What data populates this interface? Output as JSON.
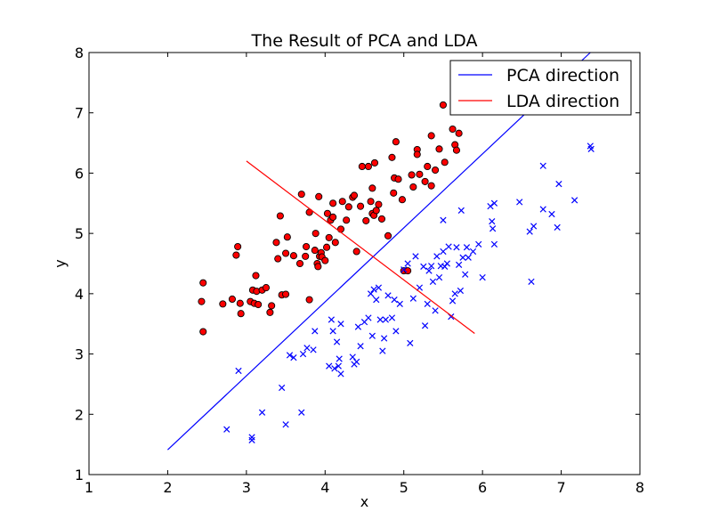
{
  "chart_data": {
    "type": "scatter",
    "title": "The Result of PCA and LDA",
    "xlabel": "x",
    "ylabel": "y",
    "xlim": [
      1,
      8
    ],
    "ylim": [
      1,
      8
    ],
    "xticks": [
      "1",
      "2",
      "3",
      "4",
      "5",
      "6",
      "7",
      "8"
    ],
    "yticks": [
      "1",
      "2",
      "3",
      "4",
      "5",
      "6",
      "7",
      "8"
    ],
    "grid": false,
    "legend_position": "top-right",
    "colors": {
      "pca": "#0000ff",
      "lda": "#ff0000",
      "class1": "#ff0000",
      "class2": "#0000ff"
    },
    "lines": [
      {
        "name": "PCA direction",
        "color": "#0000ff",
        "points": [
          [
            2.0,
            1.41
          ],
          [
            7.37,
            8.0
          ]
        ]
      },
      {
        "name": "LDA direction",
        "color": "#ff0000",
        "points": [
          [
            3.0,
            6.2
          ],
          [
            5.9,
            3.34
          ]
        ]
      }
    ],
    "series": [
      {
        "marker": "circle",
        "color": "#ff0000",
        "points": [
          [
            2.45,
            4.18
          ],
          [
            2.43,
            3.87
          ],
          [
            2.45,
            3.37
          ],
          [
            2.7,
            3.83
          ],
          [
            2.82,
            3.91
          ],
          [
            2.87,
            4.64
          ],
          [
            2.89,
            4.78
          ],
          [
            2.92,
            3.84
          ],
          [
            2.93,
            3.67
          ],
          [
            3.05,
            3.87
          ],
          [
            3.08,
            4.06
          ],
          [
            3.1,
            3.84
          ],
          [
            3.12,
            4.3
          ],
          [
            3.13,
            4.04
          ],
          [
            3.15,
            3.82
          ],
          [
            3.2,
            4.06
          ],
          [
            3.25,
            4.1
          ],
          [
            3.3,
            3.69
          ],
          [
            3.32,
            3.8
          ],
          [
            3.38,
            4.85
          ],
          [
            3.4,
            4.58
          ],
          [
            3.43,
            5.29
          ],
          [
            3.45,
            3.98
          ],
          [
            3.5,
            3.99
          ],
          [
            3.5,
            4.67
          ],
          [
            3.52,
            4.94
          ],
          [
            3.6,
            4.63
          ],
          [
            3.68,
            4.5
          ],
          [
            3.7,
            5.65
          ],
          [
            3.75,
            4.62
          ],
          [
            3.76,
            4.78
          ],
          [
            3.8,
            3.9
          ],
          [
            3.8,
            5.35
          ],
          [
            3.87,
            4.72
          ],
          [
            3.88,
            5.0
          ],
          [
            3.9,
            4.5
          ],
          [
            3.91,
            4.45
          ],
          [
            3.92,
            5.61
          ],
          [
            3.93,
            4.62
          ],
          [
            3.95,
            4.68
          ],
          [
            3.96,
            4.61
          ],
          [
            4.0,
            4.55
          ],
          [
            4.02,
            4.77
          ],
          [
            4.03,
            5.33
          ],
          [
            4.05,
            4.93
          ],
          [
            4.07,
            5.22
          ],
          [
            4.1,
            5.5
          ],
          [
            4.1,
            5.27
          ],
          [
            4.13,
            4.85
          ],
          [
            4.2,
            5.07
          ],
          [
            4.22,
            5.53
          ],
          [
            4.27,
            5.22
          ],
          [
            4.3,
            5.44
          ],
          [
            4.35,
            5.6
          ],
          [
            4.37,
            5.63
          ],
          [
            4.4,
            4.7
          ],
          [
            4.45,
            5.45
          ],
          [
            4.47,
            6.11
          ],
          [
            4.52,
            5.21
          ],
          [
            4.55,
            6.11
          ],
          [
            4.58,
            5.53
          ],
          [
            4.6,
            5.75
          ],
          [
            4.6,
            5.33
          ],
          [
            4.62,
            5.3
          ],
          [
            4.63,
            6.17
          ],
          [
            4.65,
            5.38
          ],
          [
            4.68,
            5.48
          ],
          [
            4.72,
            5.24
          ],
          [
            4.8,
            4.96
          ],
          [
            4.85,
            6.26
          ],
          [
            4.87,
            5.67
          ],
          [
            4.88,
            5.92
          ],
          [
            4.9,
            6.52
          ],
          [
            4.93,
            5.9
          ],
          [
            4.98,
            5.56
          ],
          [
            5.0,
            4.38
          ],
          [
            5.05,
            4.38
          ],
          [
            5.1,
            5.97
          ],
          [
            5.12,
            5.77
          ],
          [
            5.17,
            6.39
          ],
          [
            5.17,
            6.31
          ],
          [
            5.2,
            5.98
          ],
          [
            5.27,
            5.86
          ],
          [
            5.3,
            6.11
          ],
          [
            5.35,
            5.79
          ],
          [
            5.35,
            6.62
          ],
          [
            5.4,
            6.05
          ],
          [
            5.45,
            6.4
          ],
          [
            5.5,
            7.13
          ],
          [
            5.52,
            6.18
          ],
          [
            5.62,
            6.73
          ],
          [
            5.65,
            6.47
          ],
          [
            5.67,
            6.38
          ],
          [
            5.7,
            6.66
          ]
        ]
      },
      {
        "marker": "x",
        "color": "#0000ff",
        "points": [
          [
            2.75,
            1.75
          ],
          [
            2.9,
            2.72
          ],
          [
            3.07,
            1.62
          ],
          [
            3.07,
            1.57
          ],
          [
            3.2,
            2.03
          ],
          [
            3.45,
            2.44
          ],
          [
            3.5,
            1.83
          ],
          [
            3.55,
            2.98
          ],
          [
            3.6,
            2.94
          ],
          [
            3.7,
            2.03
          ],
          [
            3.72,
            3.0
          ],
          [
            3.77,
            3.1
          ],
          [
            3.85,
            3.07
          ],
          [
            3.87,
            3.38
          ],
          [
            4.05,
            2.8
          ],
          [
            4.08,
            3.57
          ],
          [
            4.1,
            3.38
          ],
          [
            4.12,
            2.76
          ],
          [
            4.15,
            3.2
          ],
          [
            4.17,
            2.8
          ],
          [
            4.18,
            2.92
          ],
          [
            4.2,
            2.67
          ],
          [
            4.2,
            3.5
          ],
          [
            4.35,
            2.95
          ],
          [
            4.37,
            2.83
          ],
          [
            4.4,
            2.87
          ],
          [
            4.42,
            3.45
          ],
          [
            4.45,
            3.13
          ],
          [
            4.5,
            3.53
          ],
          [
            4.55,
            3.6
          ],
          [
            4.58,
            4.0
          ],
          [
            4.6,
            3.3
          ],
          [
            4.62,
            4.07
          ],
          [
            4.65,
            3.9
          ],
          [
            4.68,
            4.1
          ],
          [
            4.7,
            3.57
          ],
          [
            4.73,
            3.05
          ],
          [
            4.75,
            3.26
          ],
          [
            4.77,
            3.57
          ],
          [
            4.8,
            3.97
          ],
          [
            4.85,
            3.6
          ],
          [
            4.88,
            3.9
          ],
          [
            4.9,
            3.38
          ],
          [
            4.95,
            3.83
          ],
          [
            5.0,
            4.4
          ],
          [
            5.05,
            4.5
          ],
          [
            5.08,
            3.18
          ],
          [
            5.12,
            3.92
          ],
          [
            5.15,
            4.62
          ],
          [
            5.2,
            4.1
          ],
          [
            5.25,
            4.45
          ],
          [
            5.27,
            3.47
          ],
          [
            5.3,
            3.83
          ],
          [
            5.32,
            4.38
          ],
          [
            5.35,
            4.46
          ],
          [
            5.37,
            4.2
          ],
          [
            5.4,
            3.72
          ],
          [
            5.42,
            4.62
          ],
          [
            5.45,
            4.27
          ],
          [
            5.47,
            4.46
          ],
          [
            5.5,
            4.7
          ],
          [
            5.5,
            5.22
          ],
          [
            5.52,
            4.45
          ],
          [
            5.55,
            4.5
          ],
          [
            5.57,
            4.78
          ],
          [
            5.6,
            3.62
          ],
          [
            5.62,
            3.88
          ],
          [
            5.65,
            4.0
          ],
          [
            5.67,
            4.77
          ],
          [
            5.7,
            4.48
          ],
          [
            5.72,
            4.05
          ],
          [
            5.73,
            5.38
          ],
          [
            5.75,
            4.6
          ],
          [
            5.78,
            4.32
          ],
          [
            5.8,
            4.77
          ],
          [
            5.82,
            4.6
          ],
          [
            5.88,
            4.7
          ],
          [
            5.95,
            4.82
          ],
          [
            6.0,
            4.27
          ],
          [
            6.1,
            5.45
          ],
          [
            6.12,
            5.2
          ],
          [
            6.13,
            5.08
          ],
          [
            6.15,
            5.5
          ],
          [
            6.15,
            4.82
          ],
          [
            6.47,
            5.52
          ],
          [
            6.6,
            5.03
          ],
          [
            6.62,
            4.2
          ],
          [
            6.65,
            5.12
          ],
          [
            6.77,
            5.4
          ],
          [
            6.77,
            6.12
          ],
          [
            6.88,
            5.32
          ],
          [
            6.95,
            5.1
          ],
          [
            6.97,
            5.82
          ],
          [
            7.17,
            5.55
          ],
          [
            7.37,
            6.45
          ],
          [
            7.38,
            6.4
          ]
        ]
      }
    ]
  }
}
